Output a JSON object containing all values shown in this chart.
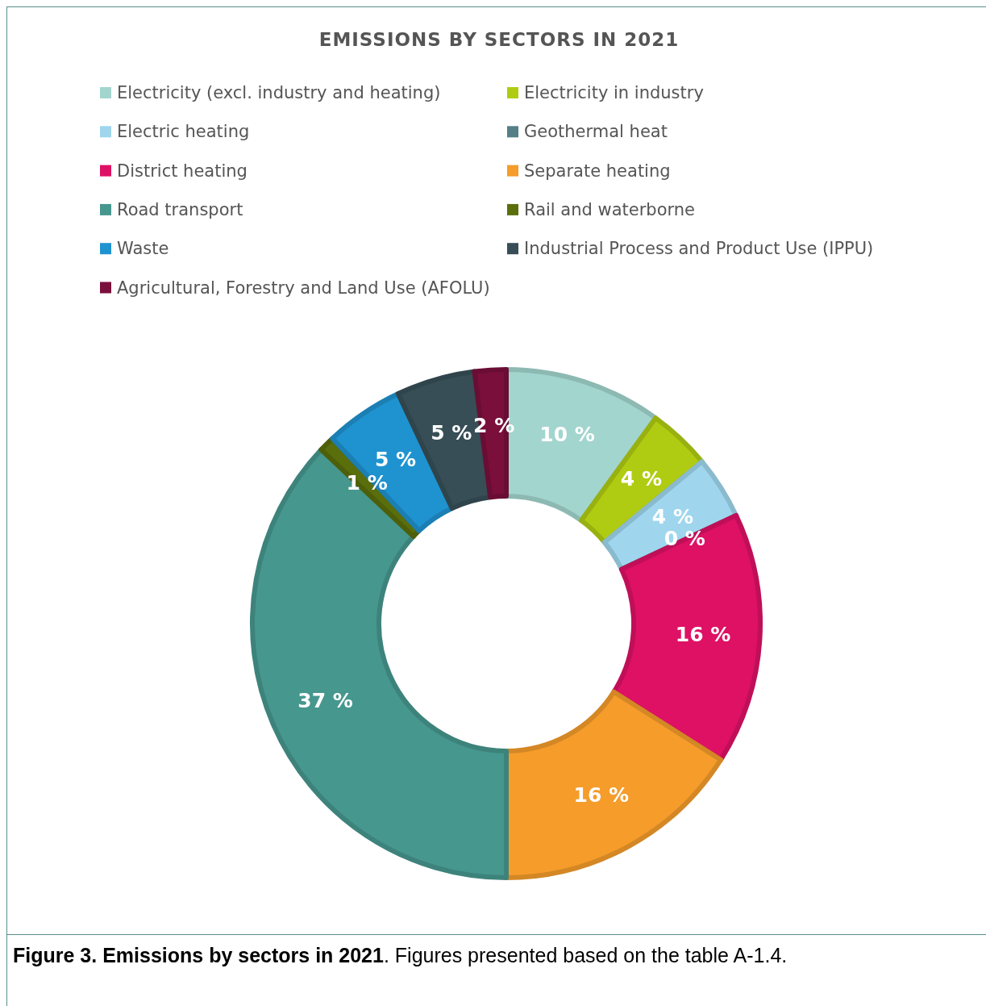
{
  "chart_data": {
    "type": "donut",
    "title": "EMISSIONS BY SECTORS IN 2021",
    "categories": [
      "Electricity (excl. industry and heating)",
      "Electricity in industry",
      "Electric heating",
      "Geothermal heat",
      "District heating",
      "Separate heating",
      "Road transport",
      "Rail and waterborne",
      "Waste",
      "Industrial Process and Product Use (IPPU)",
      "Agricultural, Forestry and Land Use (AFOLU)"
    ],
    "values": [
      10,
      4,
      4,
      0,
      16,
      16,
      37,
      1,
      5,
      5,
      2
    ],
    "colors": [
      "#a3d5cf",
      "#b0cc12",
      "#9fd6ee",
      "#547f86",
      "#de1165",
      "#f59c2b",
      "#46978e",
      "#5a6e0c",
      "#1f93d0",
      "#374e56",
      "#7a0f3c"
    ],
    "value_labels": [
      "10 %",
      "4 %",
      "4 %",
      "0 %",
      "16 %",
      "16 %",
      "37 %",
      "1 %",
      "5 %",
      "5 %",
      "2 %"
    ],
    "legend": "top",
    "annotations": [
      "Figure 3. Emissions by sectors in 2021",
      ". Figures presented based on the table A-1.4."
    ]
  }
}
